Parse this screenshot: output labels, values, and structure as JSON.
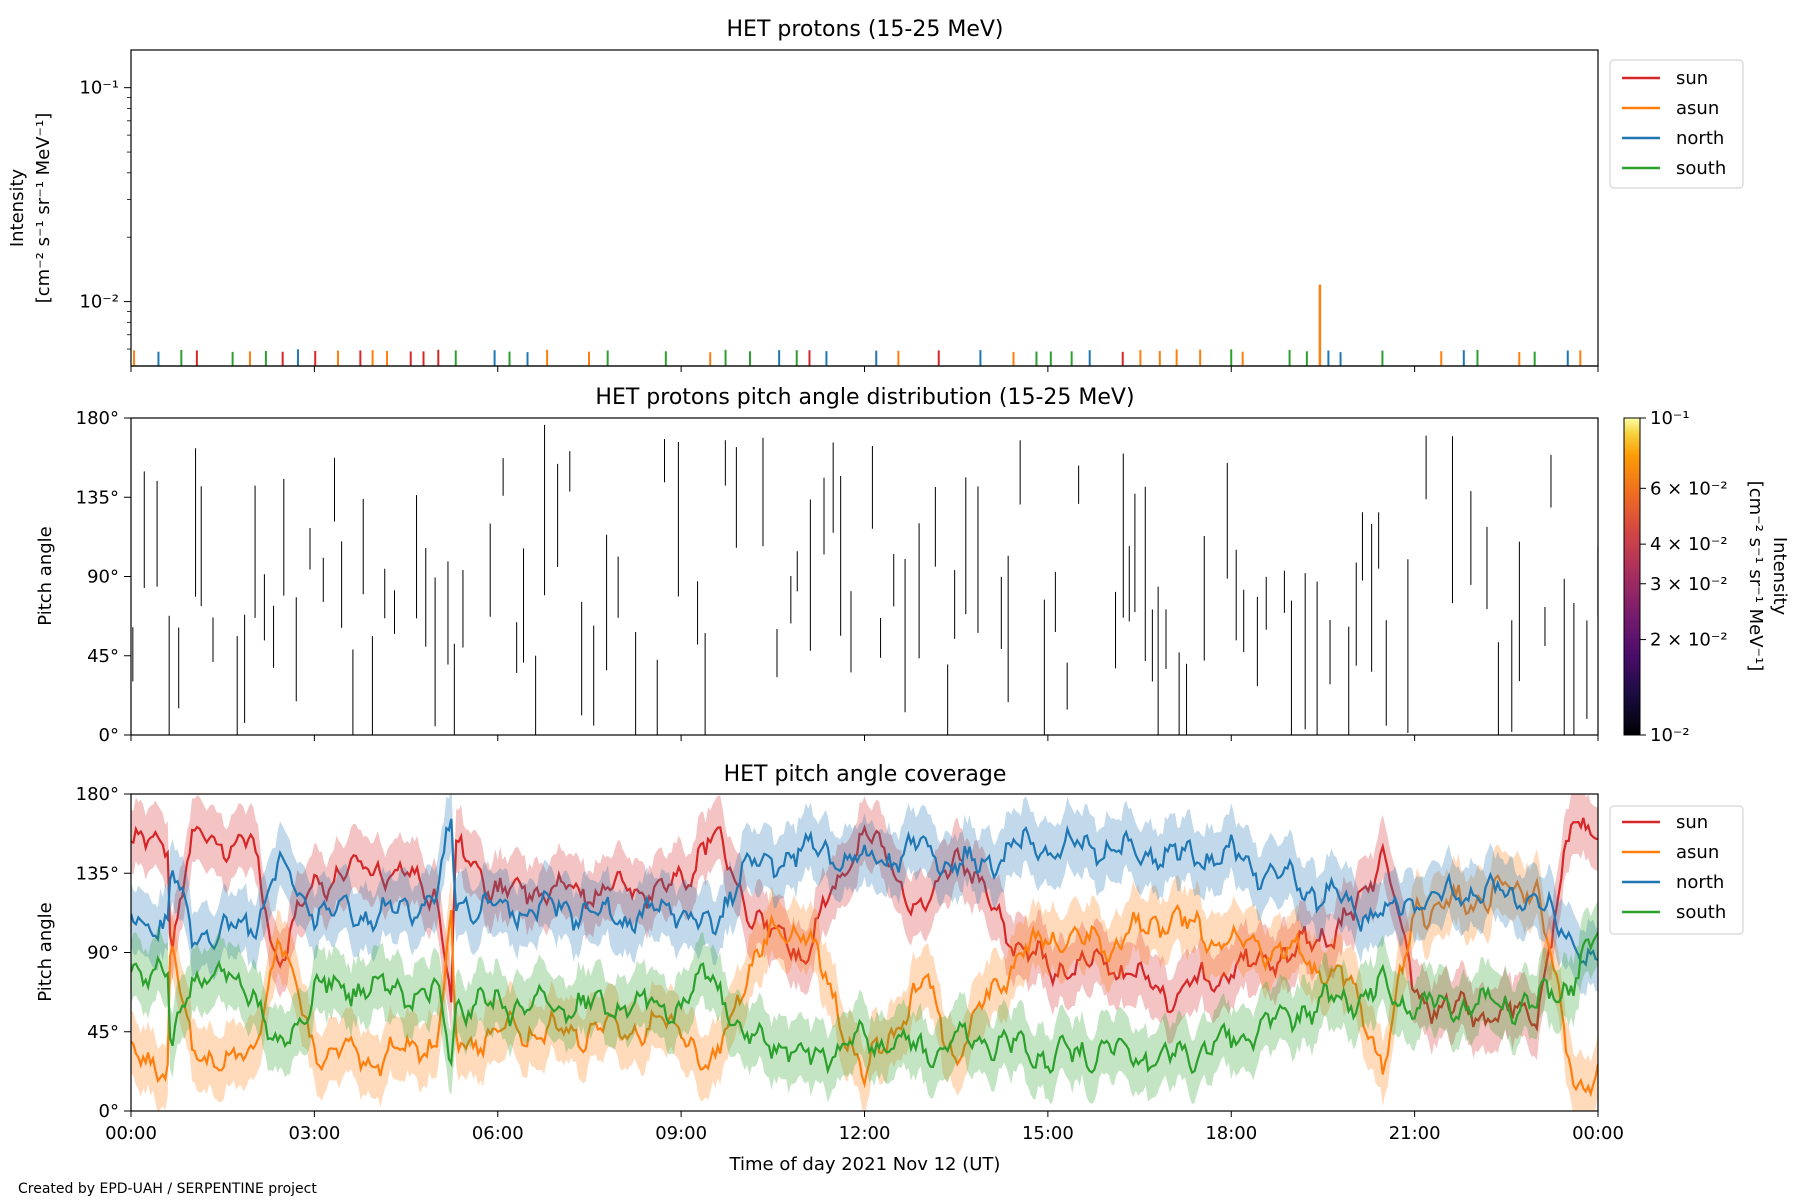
{
  "chart_data": [
    {
      "type": "line",
      "title": "HET protons (15-25 MeV)",
      "ylabel_lines": [
        "Intensity",
        "[cm⁻² s⁻¹ sr⁻¹ MeV⁻¹]"
      ],
      "yscale": "log",
      "ylim": [
        0.005,
        0.15
      ],
      "yticks": [
        {
          "value": 0.1,
          "label": "10⁻¹"
        },
        {
          "value": 0.01,
          "label": "10⁻²"
        }
      ],
      "xlim_hours": [
        0,
        24
      ],
      "legend": {
        "placement": "outside-right-top",
        "entries": [
          "sun",
          "asun",
          "north",
          "south"
        ]
      },
      "series": [
        {
          "name": "sun",
          "color": "#d62728"
        },
        {
          "name": "asun",
          "color": "#ff7f0e"
        },
        {
          "name": "north",
          "color": "#1f77b4"
        },
        {
          "name": "south",
          "color": "#2ca02c"
        }
      ],
      "baseline_intensity": 0.0058,
      "peak": {
        "series": "asun",
        "hour": 19.45,
        "value": 0.012
      }
    },
    {
      "type": "heatmap",
      "title": "HET protons pitch angle distribution (15-25 MeV)",
      "ylabel": "Pitch angle",
      "ylim": [
        0,
        180
      ],
      "yticks": [
        {
          "value": 0,
          "label": "0°"
        },
        {
          "value": 45,
          "label": "45°"
        },
        {
          "value": 90,
          "label": "90°"
        },
        {
          "value": 135,
          "label": "135°"
        },
        {
          "value": 180,
          "label": "180°"
        }
      ],
      "colorbar": {
        "scale": "log",
        "range": [
          0.01,
          0.1
        ],
        "label_lines": [
          "Intensity",
          "[cm⁻² s⁻¹ sr⁻¹ MeV⁻¹]"
        ],
        "ticks": [
          {
            "value": 0.1,
            "label": "10⁻¹"
          },
          {
            "value": 0.06,
            "label": "6 × 10⁻²"
          },
          {
            "value": 0.04,
            "label": "4 × 10⁻²"
          },
          {
            "value": 0.03,
            "label": "3 × 10⁻²"
          },
          {
            "value": 0.02,
            "label": "2 × 10⁻²"
          },
          {
            "value": 0.01,
            "label": "10⁻²"
          }
        ]
      }
    },
    {
      "type": "line",
      "title": "HET pitch angle coverage",
      "ylabel": "Pitch angle",
      "ylim": [
        0,
        180
      ],
      "yticks": [
        {
          "value": 0,
          "label": "0°"
        },
        {
          "value": 45,
          "label": "45°"
        },
        {
          "value": 90,
          "label": "90°"
        },
        {
          "value": 135,
          "label": "135°"
        },
        {
          "value": 180,
          "label": "180°"
        }
      ],
      "xlabel": "Time of day 2021 Nov 12 (UT)",
      "xticks": [
        "00:00",
        "03:00",
        "06:00",
        "09:00",
        "12:00",
        "15:00",
        "18:00",
        "21:00",
        "00:00"
      ],
      "xlim_hours": [
        0,
        24
      ],
      "legend": {
        "placement": "outside-right-top",
        "entries": [
          "sun",
          "asun",
          "north",
          "south"
        ]
      },
      "shaded_band_halfwidth_deg": 18,
      "series": [
        {
          "name": "sun",
          "color": "#d62728",
          "hours": [
            0,
            0.6,
            0.65,
            1,
            2,
            2.4,
            3,
            4,
            5,
            5.25,
            5.3,
            6,
            7,
            8,
            9,
            9.5,
            10,
            10.5,
            11,
            12,
            13,
            13.5,
            14,
            14.5,
            15,
            16,
            17,
            18,
            19,
            20,
            20.5,
            21,
            22,
            23,
            23.6,
            24
          ],
          "values": [
            150,
            155,
            90,
            155,
            150,
            85,
            130,
            140,
            125,
            60,
            150,
            125,
            125,
            125,
            128,
            160,
            120,
            100,
            90,
            160,
            110,
            150,
            120,
            95,
            80,
            85,
            65,
            80,
            90,
            110,
            150,
            65,
            55,
            55,
            165,
            160
          ]
        },
        {
          "name": "asun",
          "color": "#ff7f0e",
          "hours": [
            0,
            0.6,
            0.65,
            1,
            2,
            2.4,
            3,
            4,
            5,
            5.25,
            5.3,
            6,
            7,
            8,
            9,
            9.5,
            10,
            10.5,
            11,
            12,
            13,
            13.5,
            14,
            14.5,
            15,
            16,
            17,
            18,
            19,
            20,
            20.5,
            21,
            22,
            23,
            23.6,
            24
          ],
          "values": [
            30,
            25,
            100,
            30,
            30,
            100,
            35,
            30,
            40,
            110,
            35,
            45,
            45,
            45,
            50,
            20,
            75,
            100,
            105,
            20,
            75,
            30,
            65,
            85,
            100,
            95,
            110,
            95,
            90,
            70,
            25,
            115,
            120,
            130,
            15,
            20
          ]
        },
        {
          "name": "north",
          "color": "#1f77b4",
          "hours": [
            0,
            0.6,
            0.65,
            1,
            2,
            2.4,
            3,
            4,
            5,
            5.25,
            5.3,
            6,
            7,
            8,
            9,
            9.5,
            10,
            10.5,
            11,
            12,
            13,
            13.5,
            14,
            14.5,
            15,
            16,
            17,
            18,
            19,
            20,
            20.5,
            21,
            22,
            23,
            23.6,
            24
          ],
          "values": [
            110,
            105,
            140,
            100,
            105,
            140,
            115,
            110,
            120,
            165,
            120,
            115,
            115,
            110,
            115,
            100,
            140,
            140,
            150,
            140,
            150,
            140,
            140,
            150,
            150,
            150,
            145,
            145,
            130,
            115,
            110,
            120,
            125,
            120,
            95,
            80
          ]
        },
        {
          "name": "south",
          "color": "#2ca02c",
          "hours": [
            0,
            0.6,
            0.65,
            1,
            2,
            2.4,
            3,
            4,
            5,
            5.25,
            5.3,
            6,
            7,
            8,
            9,
            9.5,
            10,
            10.5,
            11,
            12,
            13,
            13.5,
            14,
            14.5,
            15,
            16,
            17,
            18,
            19,
            20,
            20.5,
            21,
            22,
            23,
            23.6,
            24
          ],
          "values": [
            80,
            80,
            30,
            80,
            70,
            30,
            70,
            70,
            65,
            30,
            60,
            60,
            60,
            60,
            60,
            80,
            40,
            40,
            30,
            40,
            35,
            40,
            40,
            35,
            30,
            35,
            30,
            40,
            55,
            65,
            70,
            60,
            60,
            60,
            75,
            100
          ]
        }
      ]
    }
  ],
  "footer": "Created by EPD-UAH / SERPENTINE project"
}
